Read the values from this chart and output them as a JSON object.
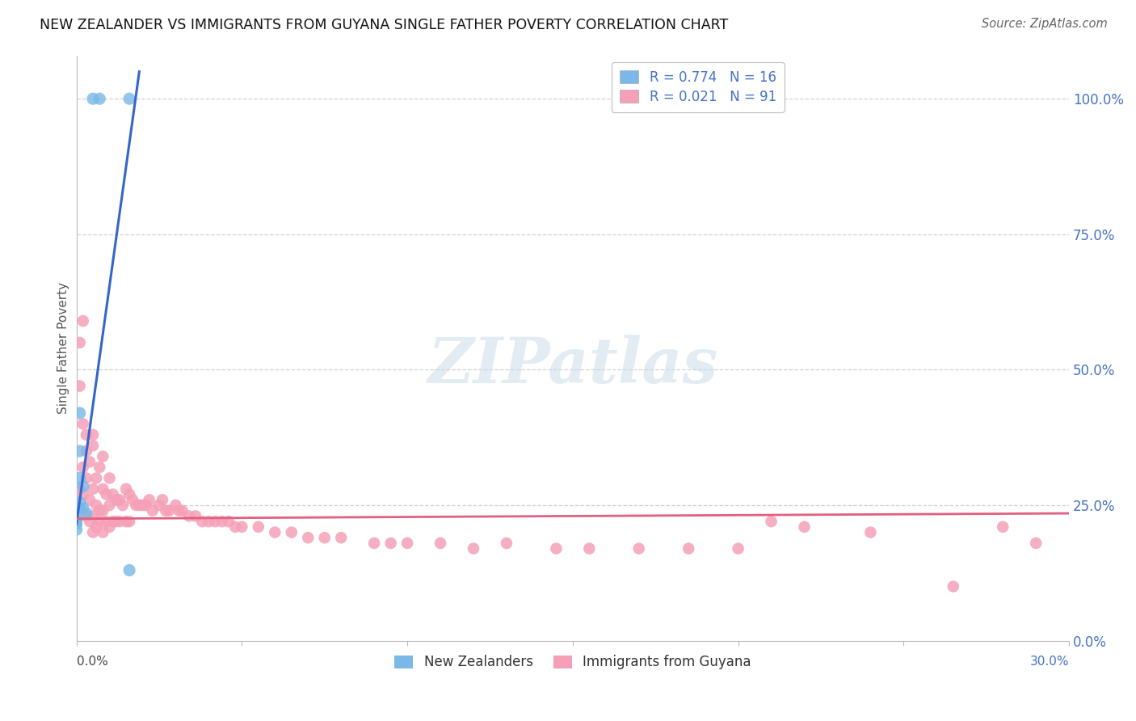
{
  "title": "NEW ZEALANDER VS IMMIGRANTS FROM GUYANA SINGLE FATHER POVERTY CORRELATION CHART",
  "source": "Source: ZipAtlas.com",
  "ylabel": "Single Father Poverty",
  "right_yticks": [
    "100.0%",
    "75.0%",
    "50.0%",
    "25.0%",
    "0.0%"
  ],
  "right_ytick_vals": [
    1.0,
    0.75,
    0.5,
    0.25,
    0.0
  ],
  "xlim": [
    0.0,
    0.3
  ],
  "ylim": [
    0.0,
    1.08
  ],
  "background_color": "#ffffff",
  "grid_color": "#d0d0d0",
  "blue_color": "#7ab8e8",
  "blue_line_color": "#3366cc",
  "pink_color": "#f5a0b8",
  "pink_line_color": "#e06080",
  "legend_label1": "R = 0.774   N = 16",
  "legend_label2": "R = 0.021   N = 91",
  "bottom_label1": "New Zealanders",
  "bottom_label2": "Immigrants from Guyana",
  "nz_x": [
    0.005,
    0.007,
    0.016,
    0.001,
    0.001,
    0.001,
    0.002,
    0.001,
    0.001,
    0.002,
    0.003,
    0.0,
    0.0,
    0.0,
    0.0,
    0.016
  ],
  "nz_y": [
    1.0,
    1.0,
    1.0,
    0.42,
    0.35,
    0.3,
    0.285,
    0.255,
    0.245,
    0.245,
    0.235,
    0.225,
    0.22,
    0.215,
    0.205,
    0.13
  ],
  "guyana_x": [
    0.001,
    0.001,
    0.002,
    0.002,
    0.002,
    0.003,
    0.003,
    0.003,
    0.004,
    0.004,
    0.004,
    0.005,
    0.005,
    0.005,
    0.005,
    0.006,
    0.006,
    0.006,
    0.007,
    0.007,
    0.007,
    0.008,
    0.008,
    0.008,
    0.009,
    0.009,
    0.01,
    0.01,
    0.01,
    0.011,
    0.011,
    0.012,
    0.012,
    0.013,
    0.013,
    0.014,
    0.015,
    0.015,
    0.016,
    0.016,
    0.017,
    0.018,
    0.019,
    0.02,
    0.021,
    0.022,
    0.023,
    0.025,
    0.026,
    0.027,
    0.028,
    0.03,
    0.031,
    0.032,
    0.034,
    0.036,
    0.038,
    0.04,
    0.042,
    0.044,
    0.046,
    0.048,
    0.05,
    0.055,
    0.06,
    0.065,
    0.07,
    0.075,
    0.08,
    0.09,
    0.095,
    0.1,
    0.11,
    0.12,
    0.13,
    0.145,
    0.155,
    0.17,
    0.185,
    0.2,
    0.21,
    0.22,
    0.24,
    0.265,
    0.28,
    0.29,
    0.001,
    0.002,
    0.003,
    0.005,
    0.008
  ],
  "guyana_y": [
    0.47,
    0.28,
    0.4,
    0.32,
    0.27,
    0.35,
    0.3,
    0.23,
    0.33,
    0.26,
    0.22,
    0.38,
    0.28,
    0.23,
    0.2,
    0.3,
    0.25,
    0.21,
    0.32,
    0.24,
    0.22,
    0.28,
    0.24,
    0.2,
    0.27,
    0.22,
    0.3,
    0.25,
    0.21,
    0.27,
    0.22,
    0.26,
    0.22,
    0.26,
    0.22,
    0.25,
    0.28,
    0.22,
    0.27,
    0.22,
    0.26,
    0.25,
    0.25,
    0.25,
    0.25,
    0.26,
    0.24,
    0.25,
    0.26,
    0.24,
    0.24,
    0.25,
    0.24,
    0.24,
    0.23,
    0.23,
    0.22,
    0.22,
    0.22,
    0.22,
    0.22,
    0.21,
    0.21,
    0.21,
    0.2,
    0.2,
    0.19,
    0.19,
    0.19,
    0.18,
    0.18,
    0.18,
    0.18,
    0.17,
    0.18,
    0.17,
    0.17,
    0.17,
    0.17,
    0.17,
    0.22,
    0.21,
    0.2,
    0.1,
    0.21,
    0.18,
    0.55,
    0.59,
    0.38,
    0.36,
    0.34
  ],
  "blue_line_x": [
    0.0,
    0.019
  ],
  "blue_line_y": [
    0.215,
    1.05
  ],
  "pink_line_x": [
    0.0,
    0.3
  ],
  "pink_line_y": [
    0.225,
    0.235
  ]
}
